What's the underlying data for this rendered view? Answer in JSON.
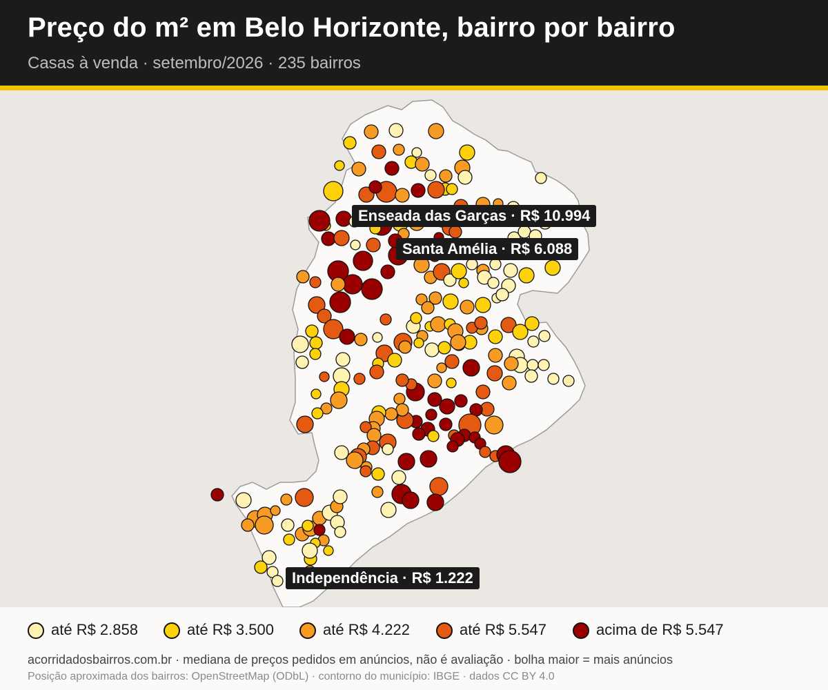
{
  "header": {
    "title": "Preço do m² em Belo Horizonte, bairro por bairro",
    "subtitle": "Casas à venda · setembro/2026 · 235 bairros"
  },
  "colors": {
    "header_bg": "#1b1b1b",
    "accent": "#f2c300",
    "map_bg": "#ebe8e3",
    "city_fill": "#fbfaf8",
    "city_stroke": "#9b9b9b",
    "bubble_stroke": "#111111"
  },
  "legend": [
    {
      "label": "até R$ 2.858",
      "color": "#fff2b3"
    },
    {
      "label": "até R$ 3.500",
      "color": "#fdd20a"
    },
    {
      "label": "até R$ 4.222",
      "color": "#f79b24"
    },
    {
      "label": "até R$ 5.547",
      "color": "#e45a13"
    },
    {
      "label": "acima de R$ 5.547",
      "color": "#9a0000"
    }
  ],
  "callouts": [
    {
      "label": "Enseada das Garças · R$ 10.994"
    },
    {
      "label": "Santa Amélia · R$ 6.088"
    },
    {
      "label": "Independência · R$ 1.222"
    }
  ],
  "footer": {
    "note": "acorridadosbairros.com.br · mediana de preços pedidos em anúncios, não é avaliação · bolha maior = mais anúncios",
    "attribution": "Posição aproximada dos bairros: OpenStreetMap (ODbL) · contorno do município: IBGE · dados CC BY 4.0"
  }
}
